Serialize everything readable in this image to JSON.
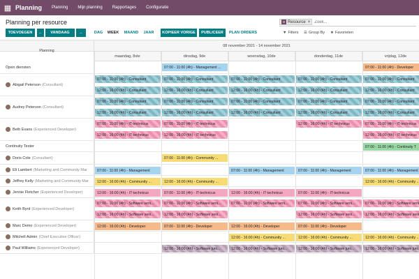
{
  "navbar": {
    "app": "Planning",
    "menus": [
      "Planning",
      "Mijn planning",
      "Rapportages",
      "Configuratie"
    ]
  },
  "control": {
    "title": "Planning per resource",
    "search": {
      "facet": "Resource",
      "placeholder": "Zoek..."
    },
    "buttons": {
      "add": "TOEVOEGEN",
      "today": "VANDAAG",
      "prev": "←",
      "next": "→",
      "copy": "KOPIEER VORIGE",
      "publish": "PUBLICEER",
      "plan": "PLAN ORDERS"
    },
    "scales": [
      "DAG",
      "WEEK",
      "MAAND",
      "JAAR"
    ],
    "active_scale": "WEEK",
    "filters": {
      "filters": "Filters",
      "groupby": "Group By",
      "favorites": "Favorieten"
    }
  },
  "gantt": {
    "range": "08 november 2021 - 14 november 2021",
    "col_title": "Planning",
    "days": [
      "maandag, 8ste",
      "dinsdag, 9de",
      "woensdag, 10de",
      "donderdag, 11de",
      "vrijdag, 12de"
    ],
    "rows": [
      {
        "name": "Open diensten",
        "role": "",
        "avatar": false,
        "pills": [
          {
            "day": 1,
            "sub": 0,
            "text": "07:00 - 11:00 (4h) - Management ...",
            "color": "c-blue"
          },
          {
            "day": 4,
            "sub": 0,
            "text": "07:00 - 11:00 (4h) - Developer",
            "color": "c-orange"
          }
        ]
      },
      {
        "name": "Abigail Peterson",
        "role": "(Consultant)",
        "avatar": true,
        "pills": [
          {
            "day": 0,
            "sub": 0,
            "text": "07:00 - 11:00 (4h) - Consultant",
            "color": "c-teal"
          },
          {
            "day": 0,
            "sub": 1,
            "text": "12:00 - 16:00 (4h) - Consultant",
            "color": "c-teal"
          },
          {
            "day": 1,
            "sub": 0,
            "text": "07:00 - 11:00 (4h) - Consultant",
            "color": "c-teal"
          },
          {
            "day": 1,
            "sub": 1,
            "text": "12:00 - 16:00 (4h) - Consultant",
            "color": "c-teal"
          },
          {
            "day": 2,
            "sub": 0,
            "text": "07:00 - 11:00 (4h) - Consultant",
            "color": "c-teal"
          },
          {
            "day": 2,
            "sub": 1,
            "text": "12:00 - 16:00 (4h) - Consultant",
            "color": "c-teal"
          },
          {
            "day": 3,
            "sub": 0,
            "text": "07:00 - 11:00 (4h) - Consultant",
            "color": "c-teal"
          },
          {
            "day": 3,
            "sub": 1,
            "text": "12:00 - 16:00 (4h) - Consultant",
            "color": "c-teal"
          },
          {
            "day": 4,
            "sub": 0,
            "text": "07:00 - 11:00 (4h) - Consultant",
            "color": "c-teal"
          },
          {
            "day": 4,
            "sub": 1,
            "text": "12:00 - 16:00 (4h) - Consultant",
            "color": "c-teal"
          }
        ]
      },
      {
        "name": "Audrey Peterson",
        "role": "(Consultant)",
        "avatar": true,
        "pills": [
          {
            "day": 0,
            "sub": 0,
            "text": "07:00 - 11:00 (4h) - Consultant",
            "color": "c-teal"
          },
          {
            "day": 0,
            "sub": 1,
            "text": "12:00 - 16:00 (4h) - Consultant",
            "color": "c-teal"
          },
          {
            "day": 1,
            "sub": 0,
            "text": "07:00 - 11:00 (4h) - Consultant",
            "color": "c-teal"
          },
          {
            "day": 1,
            "sub": 1,
            "text": "12:00 - 16:00 (4h) - Consultant",
            "color": "c-teal"
          },
          {
            "day": 2,
            "sub": 0,
            "text": "07:00 - 11:00 (4h) - Consultant",
            "color": "c-teal"
          },
          {
            "day": 2,
            "sub": 1,
            "text": "12:00 - 16:00 (4h) - Consultant",
            "color": "c-teal"
          },
          {
            "day": 3,
            "sub": 0,
            "text": "07:00 - 11:00 (4h) - Consultant",
            "color": "c-teal"
          },
          {
            "day": 3,
            "sub": 1,
            "text": "12:00 - 16:00 (4h) - Consultant",
            "color": "c-teal"
          },
          {
            "day": 4,
            "sub": 0,
            "text": "07:00 - 11:00 (4h) - Consultant",
            "color": "c-teal"
          },
          {
            "day": 4,
            "sub": 1,
            "text": "12:00 - 16:00 (4h) - Consultant",
            "color": "c-teal"
          }
        ]
      },
      {
        "name": "Beth Evans",
        "role": "(Experienced Developer)",
        "avatar": true,
        "pills": [
          {
            "day": 0,
            "sub": 0,
            "text": "07:00 - 11:00 (4h) - IT-technicus",
            "color": "c-pink"
          },
          {
            "day": 0,
            "sub": 1,
            "text": "12:00 - 16:00 (4h) - IT-technicus",
            "color": "c-pink"
          },
          {
            "day": 1,
            "sub": 0,
            "text": "07:00 - 11:00 (4h) - IT-technicus",
            "color": "c-pink"
          },
          {
            "day": 1,
            "sub": 1,
            "text": "12:00 - 16:00 (4h) - IT-technicus",
            "color": "c-pink"
          },
          {
            "day": 3,
            "sub": 0,
            "text": "12:00 - 16:00 (4h) - IT-technicus",
            "color": "c-pink"
          },
          {
            "day": 4,
            "sub": 0,
            "text": "07:00 - 11:00 (4h) - IT-technicus",
            "color": "c-pink"
          },
          {
            "day": 4,
            "sub": 1,
            "text": "12:00 - 16:00 (4h) - IT-technicus",
            "color": "c-pink"
          }
        ]
      },
      {
        "name": "Continuity Tester",
        "role": "",
        "avatar": false,
        "pills": [
          {
            "day": 4,
            "sub": 0,
            "text": "07:00 - 11:00 (4h) - Continuity T",
            "color": "c-green"
          }
        ]
      },
      {
        "name": "Doris Cole",
        "role": "(Consultant)",
        "avatar": true,
        "pills": [
          {
            "day": 1,
            "sub": 0,
            "text": "07:00 - 11:00 (4h) - Community ...",
            "color": "c-yellow"
          }
        ]
      },
      {
        "name": "Eli Lambert",
        "role": "(Marketing and Community Mar",
        "avatar": true,
        "pills": [
          {
            "day": 0,
            "sub": 0,
            "text": "07:00 - 11:00 (4h) - Management",
            "color": "c-blue"
          },
          {
            "day": 2,
            "sub": 0,
            "text": "07:00 - 11:00 (4h) - Management",
            "color": "c-blue"
          },
          {
            "day": 3,
            "sub": 0,
            "text": "07:00 - 11:00 (4h) - Management",
            "color": "c-blue"
          },
          {
            "day": 4,
            "sub": 0,
            "text": "07:00 - 11:00 (4h) - Management",
            "color": "c-blue"
          }
        ]
      },
      {
        "name": "Jeffrey Kelly",
        "role": "(Marketing and Community Mar",
        "avatar": true,
        "pills": [
          {
            "day": 0,
            "sub": 0,
            "text": "12:00 - 16:00 (4h) - Community ...",
            "color": "c-yellow"
          },
          {
            "day": 1,
            "sub": 0,
            "text": "12:00 - 16:00 (4h) - Community ...",
            "color": "c-yellow"
          },
          {
            "day": 4,
            "sub": 0,
            "text": "12:00 - 16:00 (4h) - Community ...",
            "color": "c-yellow"
          }
        ]
      },
      {
        "name": "Jennie Fletcher",
        "role": "(Experienced Developer)",
        "avatar": true,
        "pills": [
          {
            "day": 0,
            "sub": 0,
            "text": "12:00 - 16:00 (4h) - IT-technicus",
            "color": "c-pinkplain"
          },
          {
            "day": 1,
            "sub": 0,
            "text": "07:00 - 11:00 (4h) - IT-technicus",
            "color": "c-pinkplain"
          },
          {
            "day": 2,
            "sub": 0,
            "text": "12:00 - 16:00 (4h) - IT-technicus",
            "color": "c-pinkplain"
          },
          {
            "day": 3,
            "sub": 0,
            "text": "07:00 - 11:00 (4h) - IT-technicus",
            "color": "c-pinkplain"
          }
        ]
      },
      {
        "name": "Keith Byrd",
        "role": "(Experienced Developer)",
        "avatar": true,
        "pills": [
          {
            "day": 0,
            "sub": 0,
            "text": "07:00 - 11:00 (4h) - Software seni...",
            "color": "c-pink"
          },
          {
            "day": 0,
            "sub": 1,
            "text": "12:00 - 16:00 (4h) - Software seni...",
            "color": "c-pink"
          },
          {
            "day": 1,
            "sub": 0,
            "text": "07:00 - 11:00 (4h) - Software seni...",
            "color": "c-pink"
          },
          {
            "day": 1,
            "sub": 1,
            "text": "12:00 - 16:00 (4h) - Software seni...",
            "color": "c-pink"
          },
          {
            "day": 2,
            "sub": 0,
            "text": "07:00 - 11:00 (4h) - Software seni...",
            "color": "c-pink"
          },
          {
            "day": 3,
            "sub": 0,
            "text": "07:00 - 11:00 (4h) - Software seni...",
            "color": "c-pink"
          },
          {
            "day": 3,
            "sub": 1,
            "text": "12:00 - 16:00 (4h) - Software seni...",
            "color": "c-pink"
          },
          {
            "day": 4,
            "sub": 0,
            "text": "07:00 - 11:00 (4h) - Software seni...",
            "color": "c-pink"
          },
          {
            "day": 4,
            "sub": 1,
            "text": "12:00 - 16:00 (4h) - Software seni...",
            "color": "c-pink"
          }
        ]
      },
      {
        "name": "Marc Demo",
        "role": "(Experienced Developer)",
        "avatar": true,
        "pills": [
          {
            "day": 0,
            "sub": 0,
            "text": "12:00 - 16:00 (4h) - Developer",
            "color": "c-orange"
          },
          {
            "day": 1,
            "sub": 0,
            "text": "07:00 - 11:00 (4h) - Developer",
            "color": "c-orange"
          },
          {
            "day": 2,
            "sub": 0,
            "text": "12:00 - 16:00 (4h) - Developer",
            "color": "c-orange"
          },
          {
            "day": 3,
            "sub": 0,
            "text": "07:00 - 11:00 (4h) - Developer",
            "color": "c-orange"
          }
        ]
      },
      {
        "name": "Mitchell Admin",
        "role": "(Chief Executive Officer)",
        "avatar": true,
        "pills": [
          {
            "day": 2,
            "sub": 0,
            "text": "12:00 - 16:00 (4h) - Community ...",
            "color": "c-yellow"
          },
          {
            "day": 3,
            "sub": 0,
            "text": "12:00 - 16:00 (4h) - Community ...",
            "color": "c-yellow"
          },
          {
            "day": 4,
            "sub": 0,
            "text": "12:00 - 16:00 (4h) - Community ...",
            "color": "c-yellow"
          }
        ]
      },
      {
        "name": "Paul Williams",
        "role": "(Experienced Developer)",
        "avatar": true,
        "pills": [
          {
            "day": 1,
            "sub": 0,
            "text": "07:00 - 11:00 (4h) - Software juni...",
            "color": "c-purple"
          },
          {
            "day": 1,
            "sub": 1,
            "text": "12:00 - 16:00 (4h) - Software juni...",
            "color": "c-purple"
          },
          {
            "day": 2,
            "sub": 0,
            "text": "07:00 - 11:00 (4h) - Software juni...",
            "color": "c-purple"
          },
          {
            "day": 2,
            "sub": 1,
            "text": "12:00 - 16:00 (4h) - Software juni...",
            "color": "c-purple"
          },
          {
            "day": 3,
            "sub": 0,
            "text": "07:00 - 11:00 (4h) - Software juni...",
            "color": "c-purple"
          },
          {
            "day": 3,
            "sub": 1,
            "text": "12:00 - 16:00 (4h) - Software juni...",
            "color": "c-purple"
          },
          {
            "day": 4,
            "sub": 0,
            "text": "07:00 - 11:00 (4h) - Software juni...",
            "color": "c-purple"
          },
          {
            "day": 4,
            "sub": 1,
            "text": "12:00 - 16:00 (4h) - Software juni...",
            "color": "c-purple"
          }
        ]
      }
    ]
  }
}
